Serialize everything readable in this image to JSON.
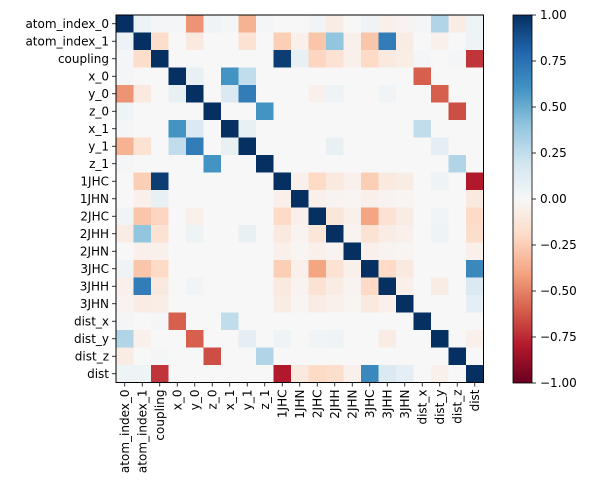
{
  "chart_data": {
    "type": "heatmap",
    "title": "",
    "xlabel": "",
    "ylabel": "",
    "labels": [
      "atom_index_0",
      "atom_index_1",
      "coupling",
      "x_0",
      "y_0",
      "z_0",
      "x_1",
      "y_1",
      "z_1",
      "1JHC",
      "1JHN",
      "2JHC",
      "2JHH",
      "2JHN",
      "3JHC",
      "3JHH",
      "3JHN",
      "dist_x",
      "dist_y",
      "dist_z",
      "dist"
    ],
    "matrix": [
      [
        1.0,
        0.06,
        0.02,
        0.02,
        -0.45,
        0.05,
        0.02,
        -0.35,
        0.02,
        0.0,
        0.0,
        0.03,
        -0.08,
        0.0,
        0.04,
        -0.05,
        -0.03,
        0.02,
        0.3,
        -0.08,
        0.05
      ],
      [
        0.06,
        1.0,
        -0.18,
        0.0,
        -0.1,
        0.0,
        0.0,
        -0.15,
        0.0,
        -0.25,
        -0.05,
        -0.28,
        0.4,
        -0.05,
        -0.28,
        0.7,
        -0.08,
        0.0,
        -0.05,
        0.0,
        0.05
      ],
      [
        0.02,
        -0.18,
        1.0,
        0.0,
        0.0,
        0.0,
        0.0,
        0.0,
        0.0,
        0.95,
        0.08,
        -0.22,
        -0.15,
        -0.05,
        -0.2,
        -0.1,
        -0.07,
        0.02,
        0.0,
        0.02,
        -0.72
      ],
      [
        0.02,
        0.0,
        0.0,
        1.0,
        0.08,
        0.0,
        0.6,
        0.25,
        0.0,
        0.0,
        0.0,
        0.0,
        0.0,
        0.0,
        0.0,
        0.0,
        0.0,
        -0.6,
        0.0,
        0.0,
        0.0
      ],
      [
        -0.45,
        -0.1,
        0.0,
        0.08,
        1.0,
        0.0,
        0.15,
        0.7,
        0.0,
        0.0,
        0.0,
        -0.05,
        0.05,
        0.0,
        0.0,
        0.03,
        0.0,
        0.0,
        -0.6,
        0.0,
        0.0
      ],
      [
        0.05,
        0.0,
        0.0,
        0.0,
        0.0,
        1.0,
        0.0,
        0.0,
        0.6,
        0.0,
        0.0,
        0.0,
        0.0,
        0.0,
        0.0,
        0.0,
        0.0,
        0.0,
        0.0,
        -0.65,
        0.0
      ],
      [
        0.02,
        0.0,
        0.0,
        0.6,
        0.15,
        0.0,
        1.0,
        0.08,
        0.0,
        0.0,
        0.0,
        0.0,
        0.0,
        0.0,
        0.0,
        0.0,
        0.0,
        0.25,
        0.0,
        0.0,
        0.0
      ],
      [
        -0.35,
        -0.15,
        0.0,
        0.25,
        0.7,
        0.0,
        0.08,
        1.0,
        0.0,
        0.0,
        0.0,
        0.0,
        0.08,
        0.0,
        0.0,
        0.0,
        0.0,
        0.0,
        0.1,
        0.0,
        0.0
      ],
      [
        0.02,
        0.0,
        0.0,
        0.0,
        0.0,
        0.6,
        0.0,
        0.0,
        1.0,
        0.0,
        0.0,
        0.0,
        0.0,
        0.0,
        0.0,
        0.0,
        0.0,
        0.0,
        0.0,
        0.3,
        0.0
      ],
      [
        0.0,
        -0.25,
        0.95,
        0.0,
        0.0,
        0.0,
        0.0,
        0.0,
        0.0,
        1.0,
        -0.05,
        -0.2,
        -0.1,
        -0.05,
        -0.25,
        -0.1,
        -0.08,
        0.0,
        0.05,
        0.0,
        -0.8
      ],
      [
        0.0,
        -0.05,
        0.08,
        0.0,
        0.0,
        0.0,
        0.0,
        0.0,
        0.0,
        -0.05,
        1.0,
        -0.05,
        -0.03,
        -0.02,
        -0.05,
        -0.03,
        -0.02,
        0.0,
        0.0,
        0.0,
        -0.1
      ],
      [
        0.03,
        -0.28,
        -0.22,
        0.0,
        -0.05,
        0.0,
        0.0,
        0.0,
        0.0,
        -0.2,
        -0.05,
        1.0,
        -0.12,
        -0.05,
        -0.4,
        -0.15,
        -0.08,
        0.0,
        0.03,
        0.0,
        -0.2
      ],
      [
        -0.08,
        0.4,
        -0.15,
        0.0,
        0.05,
        0.0,
        0.0,
        0.08,
        0.0,
        -0.1,
        -0.03,
        -0.12,
        1.0,
        -0.03,
        -0.15,
        -0.08,
        -0.05,
        0.0,
        0.05,
        0.0,
        -0.18
      ],
      [
        0.0,
        -0.05,
        -0.05,
        0.0,
        0.0,
        0.0,
        0.0,
        0.0,
        0.0,
        -0.05,
        -0.02,
        -0.05,
        -0.03,
        1.0,
        -0.05,
        -0.03,
        -0.02,
        0.0,
        0.0,
        0.0,
        -0.05
      ],
      [
        0.04,
        -0.28,
        -0.2,
        0.0,
        0.0,
        0.0,
        0.0,
        0.0,
        0.0,
        -0.25,
        -0.05,
        -0.4,
        -0.15,
        -0.05,
        1.0,
        -0.2,
        -0.1,
        0.0,
        0.0,
        0.0,
        0.65
      ],
      [
        -0.05,
        0.7,
        -0.1,
        0.0,
        0.03,
        0.0,
        0.0,
        0.0,
        0.0,
        -0.1,
        -0.03,
        -0.15,
        -0.08,
        -0.03,
        -0.2,
        1.0,
        -0.05,
        0.0,
        -0.08,
        0.0,
        0.15
      ],
      [
        -0.03,
        -0.08,
        -0.07,
        0.0,
        0.0,
        0.0,
        0.0,
        0.0,
        0.0,
        -0.08,
        -0.02,
        -0.08,
        -0.05,
        -0.02,
        -0.1,
        -0.05,
        1.0,
        0.0,
        0.0,
        0.0,
        0.1
      ],
      [
        0.02,
        0.0,
        0.02,
        -0.6,
        0.0,
        0.0,
        0.25,
        0.0,
        0.0,
        0.0,
        0.0,
        0.0,
        0.0,
        0.0,
        0.0,
        0.0,
        0.0,
        1.0,
        0.0,
        0.0,
        0.0
      ],
      [
        0.3,
        -0.05,
        0.0,
        0.0,
        -0.6,
        0.0,
        0.0,
        0.1,
        0.0,
        0.05,
        0.0,
        0.03,
        0.05,
        0.0,
        0.0,
        -0.08,
        0.0,
        0.0,
        1.0,
        0.0,
        -0.05
      ],
      [
        -0.08,
        0.0,
        0.02,
        0.0,
        0.0,
        -0.65,
        0.0,
        0.0,
        0.3,
        0.0,
        0.0,
        0.0,
        0.0,
        0.0,
        0.0,
        0.0,
        0.0,
        0.0,
        0.0,
        1.0,
        0.0
      ],
      [
        0.05,
        0.05,
        -0.72,
        0.0,
        0.0,
        0.0,
        0.0,
        0.0,
        0.0,
        -0.8,
        -0.1,
        -0.2,
        -0.18,
        -0.05,
        0.65,
        0.15,
        0.1,
        0.0,
        -0.05,
        0.0,
        1.0
      ]
    ],
    "colorbar": {
      "colormap": "RdBu",
      "range": [
        -1.0,
        1.0
      ],
      "ticks": [
        -1.0,
        -0.75,
        -0.5,
        -0.25,
        0.0,
        0.25,
        0.5,
        0.75,
        1.0
      ],
      "tick_labels": [
        "−1.00",
        "−0.75",
        "−0.50",
        "−0.25",
        "0.00",
        "0.25",
        "0.50",
        "0.75",
        "1.00"
      ]
    }
  }
}
